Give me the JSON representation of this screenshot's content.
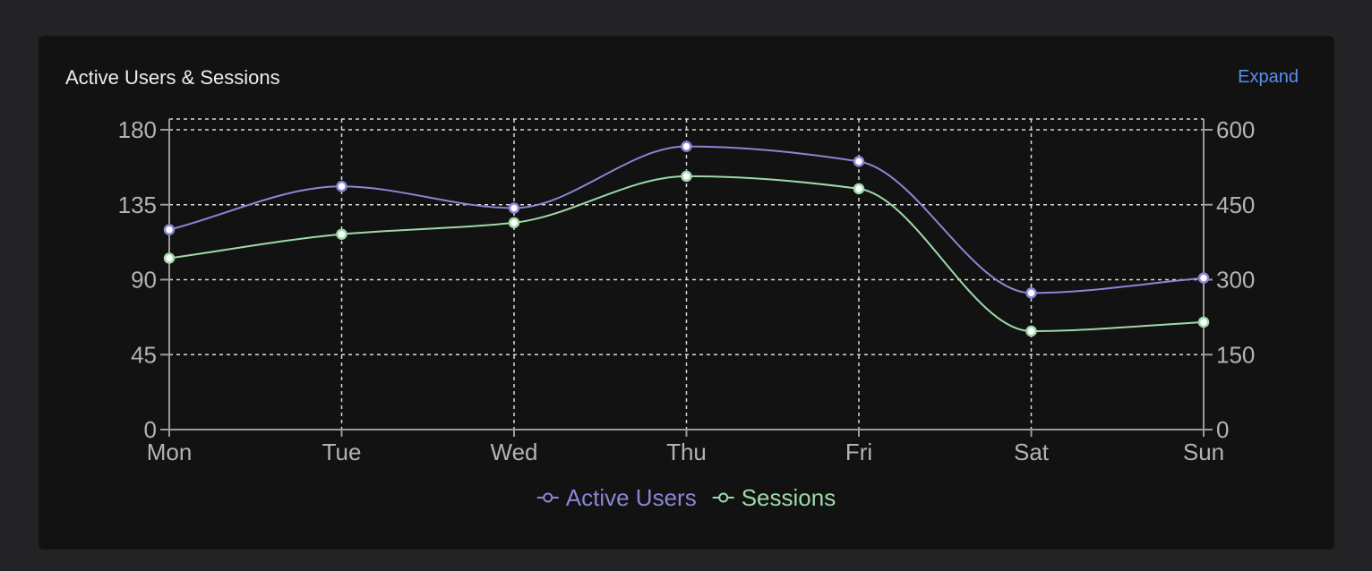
{
  "card": {
    "title": "Active Users & Sessions",
    "expand_label": "Expand"
  },
  "chart_data": {
    "type": "line",
    "categories": [
      "Mon",
      "Tue",
      "Wed",
      "Thu",
      "Fri",
      "Sat",
      "Sun"
    ],
    "series": [
      {
        "name": "Active Users",
        "axis": "left",
        "color": "#8b86d6",
        "values": [
          120,
          146,
          133,
          170,
          161,
          82,
          91
        ]
      },
      {
        "name": "Sessions",
        "axis": "right",
        "color": "#9fd9a8",
        "values": [
          343,
          391,
          414,
          507,
          482,
          197,
          215
        ]
      }
    ],
    "y_left": {
      "range": [
        0,
        180
      ],
      "ticks": [
        "0",
        "45",
        "90",
        "135",
        "180"
      ]
    },
    "y_right": {
      "range": [
        0,
        600
      ],
      "ticks": [
        "0",
        "150",
        "300",
        "450",
        "600"
      ]
    },
    "grid": true,
    "legend_position": "bottom",
    "colors": {
      "grid": "#d8d8d8",
      "axis": "#9a9a9a",
      "tick_text": "#b3b3b3",
      "point_fill": "#ffffff"
    }
  }
}
